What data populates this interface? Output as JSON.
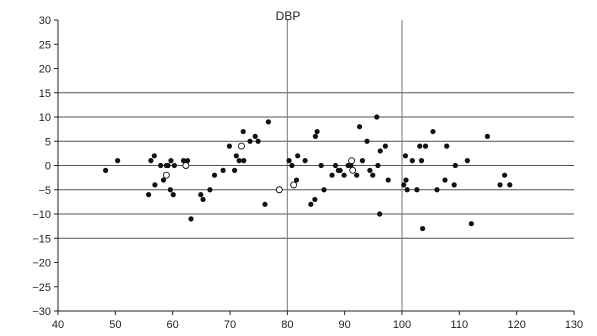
{
  "chart_data": {
    "type": "scatter",
    "title": "DBP",
    "xlabel": "",
    "ylabel": "",
    "xlim": [
      40,
      130
    ],
    "ylim": [
      -30,
      30
    ],
    "xticks": [
      40,
      50,
      60,
      70,
      80,
      90,
      100,
      110,
      120,
      130
    ],
    "yticks": [
      -30,
      -25,
      -20,
      -15,
      -10,
      -5,
      0,
      5,
      10,
      15,
      20,
      25,
      30
    ],
    "ytick_labels": [
      "−30",
      "−25",
      "−20",
      "−15",
      "−10",
      "−5",
      "0",
      "5",
      "10",
      "15",
      "20",
      "25",
      "30"
    ],
    "reference_lines_y": [
      -15,
      -10,
      -5,
      0,
      5,
      10,
      15
    ],
    "reference_lines_x": [
      80,
      100
    ],
    "series": [
      {
        "marker": "filled",
        "points": [
          [
            48.3,
            -1
          ],
          [
            50.4,
            1
          ],
          [
            55.8,
            -6
          ],
          [
            56.2,
            1
          ],
          [
            56.8,
            2
          ],
          [
            56.9,
            -4
          ],
          [
            57.9,
            0
          ],
          [
            58.4,
            -3
          ],
          [
            58.9,
            0
          ],
          [
            59.2,
            0
          ],
          [
            59.6,
            -5
          ],
          [
            59.7,
            1
          ],
          [
            60.1,
            -6
          ],
          [
            60.3,
            0
          ],
          [
            61.9,
            1
          ],
          [
            62.6,
            1
          ],
          [
            63.2,
            -11
          ],
          [
            64.9,
            -6
          ],
          [
            65.3,
            -7
          ],
          [
            66.5,
            -5
          ],
          [
            67.3,
            -2
          ],
          [
            68.8,
            -1
          ],
          [
            69.9,
            4
          ],
          [
            70.8,
            -1
          ],
          [
            71.1,
            2
          ],
          [
            71.6,
            1
          ],
          [
            72.3,
            7
          ],
          [
            72.4,
            1
          ],
          [
            73.5,
            5
          ],
          [
            74.4,
            6
          ],
          [
            74.9,
            5
          ],
          [
            76.1,
            -8
          ],
          [
            76.7,
            9
          ],
          [
            80.3,
            1
          ],
          [
            80.8,
            0
          ],
          [
            81.6,
            -3
          ],
          [
            81.8,
            2
          ],
          [
            83.1,
            1
          ],
          [
            84.1,
            -8
          ],
          [
            84.9,
            6
          ],
          [
            84.8,
            -7
          ],
          [
            85.2,
            7
          ],
          [
            85.9,
            0
          ],
          [
            86.4,
            -5
          ],
          [
            87.8,
            -2
          ],
          [
            88.4,
            0
          ],
          [
            88.9,
            -1
          ],
          [
            89.2,
            -1
          ],
          [
            89.9,
            -2
          ],
          [
            90.6,
            0
          ],
          [
            91.1,
            0
          ],
          [
            92.1,
            -2
          ],
          [
            92.6,
            8
          ],
          [
            93.1,
            1
          ],
          [
            93.9,
            5
          ],
          [
            94.4,
            -1
          ],
          [
            94.9,
            -2
          ],
          [
            95.6,
            10
          ],
          [
            95.8,
            0
          ],
          [
            96.1,
            -10
          ],
          [
            96.2,
            3
          ],
          [
            97.1,
            4
          ],
          [
            97.6,
            -3
          ],
          [
            100.3,
            -4
          ],
          [
            100.7,
            -3
          ],
          [
            100.6,
            2
          ],
          [
            100.9,
            -5
          ],
          [
            101.8,
            1
          ],
          [
            102.6,
            -5
          ],
          [
            103.1,
            4
          ],
          [
            103.6,
            -13
          ],
          [
            103.4,
            1
          ],
          [
            104.1,
            4
          ],
          [
            105.4,
            7
          ],
          [
            106.1,
            -5
          ],
          [
            107.5,
            -3
          ],
          [
            107.8,
            4
          ],
          [
            109.1,
            -4
          ],
          [
            109.3,
            0
          ],
          [
            111.4,
            1
          ],
          [
            112.1,
            -12
          ],
          [
            114.9,
            6
          ],
          [
            117.1,
            -4
          ],
          [
            117.9,
            -2
          ],
          [
            118.8,
            -4
          ]
        ]
      },
      {
        "marker": "open",
        "points": [
          [
            58.9,
            -2
          ],
          [
            62.3,
            0
          ],
          [
            72.0,
            4
          ],
          [
            78.6,
            -5
          ],
          [
            81.1,
            -4
          ],
          [
            91.2,
            1
          ],
          [
            91.4,
            -1
          ]
        ]
      }
    ]
  }
}
